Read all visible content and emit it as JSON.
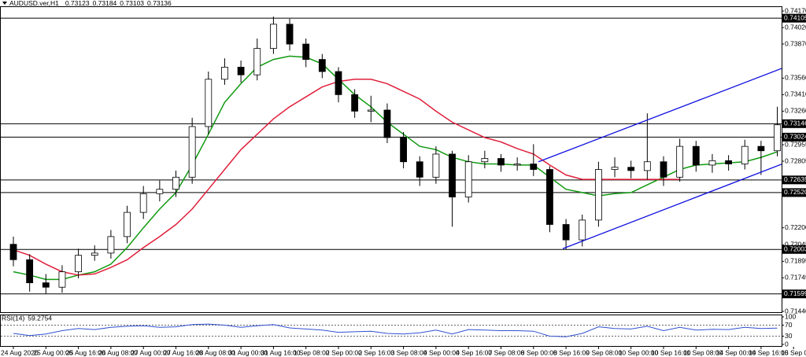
{
  "chart_data": {
    "type": "candlestick",
    "title": "AUDUSD.ver,H1",
    "quote": [
      0.73123,
      0.73184,
      0.73103,
      0.73136
    ],
    "categories": [
      "24 Aug 2020",
      null,
      "25 Aug 00:00",
      null,
      "25 Aug 16:00",
      null,
      "26 Aug 08:00",
      null,
      "27 Aug 00:00",
      null,
      "27 Aug 16:00",
      null,
      "28 Aug 08:00",
      null,
      "31 Aug 00:00",
      null,
      "31 Aug 16:00",
      null,
      "1 Sep 08:00",
      null,
      "2 Sep 00:00",
      null,
      "2 Sep 16:00",
      null,
      "3 Sep 08:00",
      null,
      "4 Sep 00:00",
      null,
      "4 Sep 16:00",
      null,
      "7 Sep 08:00",
      null,
      "8 Sep 00:00",
      null,
      "8 Sep 16:00",
      null,
      "9 Sep 08:00",
      null,
      "10 Sep 00:00",
      null,
      "10 Sep 16:00",
      null,
      "11 Sep 08:00",
      null,
      "14 Sep 00:00",
      null,
      "14 Sep 16:00",
      null,
      "15 Sep 08:00"
    ],
    "open": [
      0.7205,
      0.7191,
      0.717,
      0.7166,
      0.718,
      0.7195,
      0.7197,
      0.7212,
      0.7234,
      0.7251,
      0.7255,
      0.7266,
      0.7312,
      0.7355,
      0.7366,
      0.7359,
      0.7383,
      0.7405,
      0.7387,
      0.7373,
      0.7362,
      0.7341,
      0.7326,
      0.7327,
      0.7302,
      0.728,
      0.7266,
      0.7287,
      0.7248,
      0.728,
      0.7283,
      0.7277,
      0.7278,
      0.7273,
      0.7223,
      0.7209,
      0.7227,
      0.7273,
      0.7275,
      0.7272,
      0.728,
      0.7266,
      0.7294,
      0.7277,
      0.7281,
      0.7278,
      0.7294,
      0.729,
      null
    ],
    "high": [
      0.7212,
      0.7196,
      0.7178,
      0.7186,
      0.7201,
      0.7204,
      0.7218,
      0.724,
      0.7258,
      0.7263,
      0.7272,
      0.732,
      0.7362,
      0.7374,
      0.7372,
      0.7392,
      0.7412,
      0.741,
      0.7392,
      0.7378,
      0.7366,
      0.7346,
      0.734,
      0.7333,
      0.7307,
      0.7285,
      0.7294,
      0.729,
      0.7286,
      0.729,
      0.7287,
      0.7284,
      0.7296,
      0.7276,
      0.7228,
      0.7232,
      0.728,
      0.7284,
      0.7281,
      0.7324,
      0.7285,
      0.7301,
      0.7299,
      0.7287,
      0.7286,
      0.73,
      0.7299,
      0.733,
      null
    ],
    "low": [
      0.7185,
      0.7162,
      0.716,
      0.7161,
      0.7174,
      0.719,
      0.7192,
      0.7206,
      0.7228,
      0.7244,
      0.7248,
      0.726,
      0.7305,
      0.735,
      0.7352,
      0.7354,
      0.7378,
      0.7381,
      0.7366,
      0.7356,
      0.7334,
      0.732,
      0.7316,
      0.7297,
      0.7274,
      0.7258,
      0.726,
      0.7221,
      0.7243,
      0.7274,
      0.7271,
      0.7272,
      0.7267,
      0.7216,
      0.72,
      0.7203,
      0.7221,
      0.7266,
      0.7265,
      0.7264,
      0.7258,
      0.7262,
      0.7271,
      0.727,
      0.7272,
      0.7273,
      0.7268,
      0.7285,
      null
    ],
    "close": [
      0.7191,
      0.717,
      0.7166,
      0.718,
      0.7195,
      0.7197,
      0.7212,
      0.7234,
      0.7251,
      0.7255,
      0.7266,
      0.7312,
      0.7355,
      0.7366,
      0.7359,
      0.7383,
      0.7405,
      0.7387,
      0.7373,
      0.7362,
      0.7341,
      0.7326,
      0.7327,
      0.7302,
      0.728,
      0.7266,
      0.7287,
      0.7248,
      0.728,
      0.7283,
      0.7277,
      0.7278,
      0.7273,
      0.7223,
      0.7209,
      0.7227,
      0.7273,
      0.7275,
      0.7272,
      0.728,
      0.7266,
      0.7294,
      0.7277,
      0.7281,
      0.7278,
      0.7294,
      0.729,
      0.73136,
      null
    ],
    "moving_averages": [
      {
        "color": "#109a10",
        "values": [
          0.718,
          0.7177,
          0.7173,
          0.7173,
          0.7177,
          0.718,
          0.7187,
          0.7202,
          0.722,
          0.7237,
          0.7252,
          0.7277,
          0.7305,
          0.7334,
          0.7351,
          0.7366,
          0.7373,
          0.7376,
          0.7375,
          0.7369,
          0.7355,
          0.7341,
          0.733,
          0.7316,
          0.7305,
          0.7294,
          0.7291,
          0.7284,
          0.728,
          0.7278,
          0.7278,
          0.7277,
          0.7277,
          0.7266,
          0.7255,
          0.7252,
          0.7249,
          0.7251,
          0.7252,
          0.7259,
          0.7266,
          0.7273,
          0.7277,
          0.7278,
          0.7279,
          0.728,
          0.7284,
          0.7289,
          null
        ]
      },
      {
        "color": "#e0203c",
        "values": [
          0.72,
          0.7195,
          0.7187,
          0.718,
          0.7177,
          0.7178,
          0.7184,
          0.7191,
          0.7202,
          0.7212,
          0.7223,
          0.7237,
          0.7255,
          0.7273,
          0.7291,
          0.7305,
          0.7319,
          0.733,
          0.7339,
          0.7348,
          0.7353,
          0.7355,
          0.7355,
          0.7351,
          0.7344,
          0.7337,
          0.7326,
          0.7316,
          0.7309,
          0.7302,
          0.7298,
          0.7292,
          0.7287,
          0.7277,
          0.7268,
          0.7264,
          0.7264,
          0.7264,
          0.7264,
          0.7264,
          0.7264,
          0.7264,
          null,
          null,
          null,
          null,
          null,
          null,
          null
        ]
      }
    ],
    "trendlines": [
      {
        "color": "#1010e0",
        "x": [
          32.3,
          47.3
        ],
        "y": [
          0.728,
          0.7365
        ]
      },
      {
        "color": "#1010e0",
        "x": [
          33.8,
          47.3
        ],
        "y": [
          0.7201,
          0.7278
        ]
      }
    ],
    "levels": [
      0.74105,
      0.73146,
      0.73024,
      0.72635,
      {
        "value": 0.7252,
        "label": "0.72520"
      },
      0.72003,
      0.71599
    ],
    "ylim": [
      0.71433,
      0.74206
    ],
    "yticks": [
      {
        "value": 0.7417,
        "label": "0.74170"
      },
      {
        "value": 0.7402,
        "label": "0.74020"
      },
      {
        "value": 0.7387,
        "label": "0.73870"
      },
      {
        "value": 0.7356,
        "label": "0.73560"
      },
      {
        "value": 0.7341,
        "label": "0.73410"
      },
      {
        "value": 0.7326,
        "label": "0.73260"
      },
      0.72955,
      0.72805,
      {
        "value": 0.722,
        "label": "0.72200"
      },
      0.72045,
      0.71895,
      0.71745,
      {
        "value": 0.7144,
        "label": "0.71440"
      }
    ],
    "indicator": "RSI(14)",
    "indicator_value": 59.2754,
    "rsi": [
      40,
      32,
      38,
      50,
      58,
      54,
      62,
      66,
      68,
      62,
      64,
      72,
      74,
      70,
      62,
      68,
      72,
      60,
      56,
      52,
      44,
      46,
      48,
      40,
      38,
      42,
      52,
      38,
      54,
      52,
      50,
      50,
      48,
      30,
      28,
      40,
      64,
      58,
      56,
      66,
      50,
      62,
      52,
      55,
      54,
      62,
      58,
      59.2754,
      null
    ],
    "rsi_ylim": [
      0,
      100
    ],
    "rsi_yticks": [
      100,
      70,
      30,
      0
    ],
    "rsi_levels": [
      70,
      30
    ]
  }
}
